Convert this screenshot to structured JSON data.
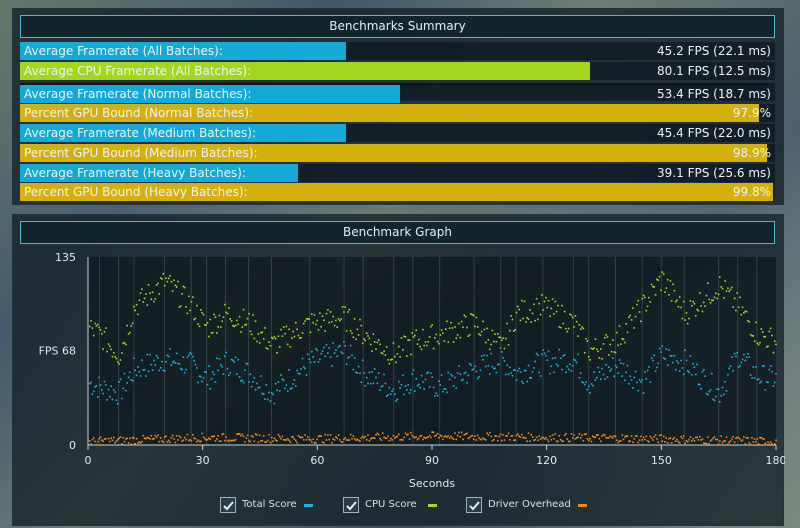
{
  "summary": {
    "title": "Benchmarks Summary",
    "rows": [
      {
        "label": "Average Framerate (All Batches):",
        "value": "45.2 FPS (22.1 ms)",
        "fraction": 0.432,
        "color": "#15a9d6"
      },
      {
        "label": "Average CPU Framerate (All Batches):",
        "value": "80.1 FPS (12.5 ms)",
        "fraction": 0.755,
        "color": "#a3d61f"
      },
      {
        "label": "Average Framerate (Normal Batches):",
        "value": "53.4 FPS (18.7 ms)",
        "fraction": 0.503,
        "color": "#15a9d6"
      },
      {
        "label": "Percent GPU Bound (Normal Batches):",
        "value": "97.9%",
        "fraction": 0.979,
        "color": "#d4b10f"
      },
      {
        "label": "Average Framerate (Medium Batches):",
        "value": "45.4 FPS (22.0 ms)",
        "fraction": 0.432,
        "color": "#15a9d6"
      },
      {
        "label": "Percent GPU Bound (Medium Batches):",
        "value": "98.9%",
        "fraction": 0.989,
        "color": "#d4b10f"
      },
      {
        "label": "Average Framerate (Heavy Batches):",
        "value": "39.1 FPS (25.6 ms)",
        "fraction": 0.368,
        "color": "#15a9d6"
      },
      {
        "label": "Percent GPU Bound (Heavy Batches):",
        "value": "99.8%",
        "fraction": 0.998,
        "color": "#d4b10f"
      }
    ]
  },
  "graph": {
    "title": "Benchmark Graph",
    "legend": [
      {
        "label": "Total Score",
        "color": "#1fb3e0",
        "checked": true
      },
      {
        "label": "CPU Score",
        "color": "#a6d92a",
        "checked": true
      },
      {
        "label": "Driver Overhead",
        "color": "#f0891f",
        "checked": true
      }
    ]
  },
  "chart_data": {
    "type": "scatter",
    "xlabel": "Seconds",
    "ylabel": "FPS",
    "xlim": [
      0,
      180
    ],
    "ylim": [
      0,
      135
    ],
    "xticks": [
      0,
      30,
      60,
      90,
      120,
      150,
      180
    ],
    "yticks": [
      0,
      68,
      135
    ],
    "ytick_labels": [
      "0",
      "FPS  68",
      "135"
    ],
    "segment_boundaries": [
      3,
      8,
      12,
      20,
      27,
      31,
      36,
      42,
      48,
      58,
      67,
      72,
      80,
      85,
      92,
      101,
      108,
      112,
      119,
      127,
      131,
      138,
      145,
      150,
      156,
      165,
      170,
      175
    ],
    "series": [
      {
        "name": "Total Score",
        "color": "#1fb3e0",
        "trend_x": [
          0,
          3,
          8,
          12,
          20,
          27,
          31,
          36,
          42,
          48,
          58,
          67,
          72,
          80,
          85,
          92,
          101,
          108,
          112,
          119,
          127,
          131,
          138,
          145,
          150,
          156,
          165,
          170,
          175,
          180
        ],
        "trend_y": [
          45,
          42,
          38,
          55,
          62,
          58,
          48,
          60,
          52,
          38,
          60,
          68,
          52,
          40,
          48,
          42,
          55,
          62,
          52,
          60,
          62,
          45,
          58,
          46,
          65,
          60,
          38,
          65,
          50,
          48
        ]
      },
      {
        "name": "CPU Score",
        "color": "#a6d92a",
        "trend_x": [
          0,
          3,
          8,
          12,
          20,
          27,
          31,
          36,
          42,
          48,
          58,
          67,
          72,
          80,
          85,
          92,
          101,
          108,
          112,
          119,
          127,
          131,
          138,
          145,
          150,
          156,
          165,
          170,
          175,
          180
        ],
        "trend_y": [
          85,
          80,
          65,
          100,
          118,
          100,
          85,
          95,
          88,
          72,
          88,
          92,
          80,
          65,
          75,
          80,
          88,
          70,
          95,
          100,
          88,
          68,
          75,
          100,
          120,
          95,
          115,
          100,
          80,
          75
        ]
      },
      {
        "name": "Driver Overhead",
        "color": "#f0891f",
        "trend_x": [
          0,
          30,
          60,
          90,
          120,
          150,
          180
        ],
        "trend_y": [
          3,
          6,
          5,
          7,
          6,
          5,
          3
        ]
      }
    ]
  }
}
